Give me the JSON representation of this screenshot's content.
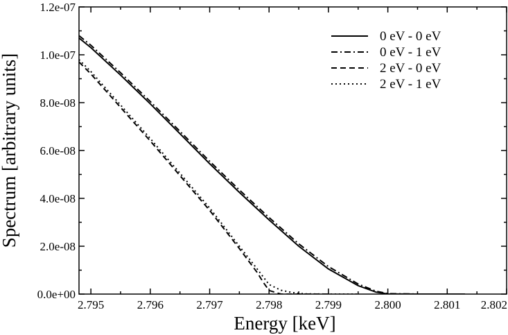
{
  "chart_data": {
    "type": "line",
    "title": "",
    "xlabel": "Energy [keV]",
    "ylabel": "Spectrum [arbitrary units]",
    "xlim": [
      2.7948,
      2.802
    ],
    "ylim": [
      0,
      1.2e-07
    ],
    "x_ticks": [
      2.795,
      2.796,
      2.797,
      2.798,
      2.799,
      2.8,
      2.801,
      2.802
    ],
    "x_tick_labels": [
      "2.795",
      "2.796",
      "2.797",
      "2.798",
      "2.799",
      "2.800",
      "2.801",
      "2.802"
    ],
    "y_ticks": [
      0,
      2e-08,
      4e-08,
      6e-08,
      8e-08,
      1e-07,
      1.2e-07
    ],
    "y_tick_labels": [
      "0.0e+00",
      "2.0e-08",
      "4.0e-08",
      "6.0e-08",
      "8.0e-08",
      "1.0e-07",
      "1.2e-07"
    ],
    "grid": false,
    "legend_position": "top-right",
    "series": [
      {
        "name": "0 eV - 0 eV",
        "style": "solid",
        "x": [
          2.7948,
          2.795,
          2.7955,
          2.796,
          2.7965,
          2.797,
          2.7975,
          2.798,
          2.7985,
          2.799,
          2.7995,
          2.7998,
          2.8,
          2.8005,
          2.8013
        ],
        "y": [
          1.07e-07,
          1.03e-07,
          9.15e-08,
          7.95e-08,
          6.7e-08,
          5.45e-08,
          4.25e-08,
          3.1e-08,
          2e-08,
          1.05e-08,
          3.5e-09,
          8e-10,
          1e-10,
          0,
          0
        ]
      },
      {
        "name": "0 eV - 1 eV",
        "style": "dashdot",
        "x": [
          2.7948,
          2.795,
          2.7955,
          2.796,
          2.7965,
          2.797,
          2.7975,
          2.798,
          2.7985,
          2.799,
          2.7995,
          2.7998,
          2.8,
          2.8005,
          2.8013
        ],
        "y": [
          1.08e-07,
          1.04e-07,
          9.25e-08,
          8.05e-08,
          6.8e-08,
          5.55e-08,
          4.35e-08,
          3.2e-08,
          2.1e-08,
          1.15e-08,
          4.2e-09,
          1.2e-09,
          2e-10,
          0,
          0
        ]
      },
      {
        "name": "2 eV - 0 eV",
        "style": "dashed",
        "x": [
          2.7948,
          2.795,
          2.7955,
          2.796,
          2.7965,
          2.797,
          2.7975,
          2.7978,
          2.7979,
          2.798,
          2.7982,
          2.7985,
          2.799
        ],
        "y": [
          9.7e-08,
          9.2e-08,
          7.8e-08,
          6.4e-08,
          4.95e-08,
          3.5e-08,
          1.9e-08,
          9e-09,
          5e-09,
          1.5e-09,
          0,
          0,
          0
        ]
      },
      {
        "name": "2 eV - 1 eV",
        "style": "dotted",
        "x": [
          2.7948,
          2.795,
          2.7955,
          2.796,
          2.7965,
          2.797,
          2.7975,
          2.7978,
          2.798,
          2.7982,
          2.7984,
          2.7986,
          2.799,
          2.7995
        ],
        "y": [
          9.8e-08,
          9.3e-08,
          7.9e-08,
          6.5e-08,
          5.05e-08,
          3.6e-08,
          2e-08,
          1.05e-08,
          4e-09,
          1.6e-09,
          6e-10,
          1e-10,
          0,
          0
        ]
      }
    ]
  }
}
